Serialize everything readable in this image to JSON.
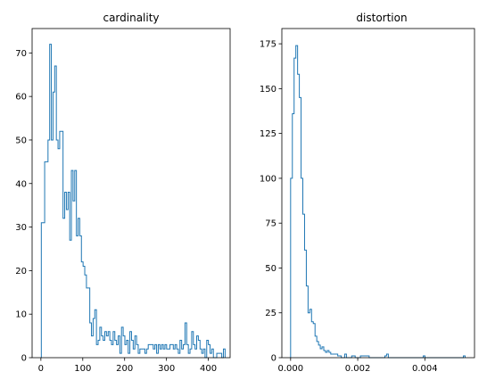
{
  "colors": {
    "series": "#1f77b4",
    "axes": "#000000",
    "background": "#ffffff"
  },
  "chart_data": [
    {
      "type": "histogram",
      "title": "cardinality",
      "xlabel": "",
      "ylabel": "",
      "xlim": [
        -21,
        452
      ],
      "ylim": [
        0,
        75.6
      ],
      "x_ticks": [
        0,
        100,
        200,
        300,
        400
      ],
      "x_tick_labels": [
        "0",
        "100",
        "200",
        "300",
        "400"
      ],
      "y_ticks": [
        0,
        10,
        20,
        30,
        40,
        50,
        60,
        70
      ],
      "y_tick_labels": [
        "0",
        "10",
        "20",
        "30",
        "40",
        "50",
        "60",
        "70"
      ],
      "bin_range": [
        1,
        440
      ],
      "counts": [
        31,
        31,
        45,
        45,
        50,
        72,
        50,
        61,
        67,
        50,
        48,
        52,
        52,
        32,
        38,
        34,
        38,
        27,
        43,
        36,
        43,
        28,
        32,
        28,
        22,
        21,
        19,
        16,
        16,
        8,
        5,
        9,
        11,
        3,
        4,
        7,
        5,
        4,
        6,
        5,
        6,
        4,
        3,
        6,
        4,
        3,
        5,
        1,
        7,
        5,
        3,
        4,
        1,
        6,
        4,
        2,
        5,
        3,
        1,
        2,
        2,
        2,
        1,
        2,
        3,
        3,
        3,
        2,
        3,
        1,
        3,
        2,
        3,
        2,
        3,
        2,
        2,
        3,
        3,
        2,
        3,
        2,
        1,
        4,
        2,
        3,
        8,
        3,
        1,
        2,
        6,
        3,
        2,
        5,
        4,
        2,
        1,
        2,
        0,
        4,
        3,
        1,
        2,
        0,
        0,
        1,
        1,
        1,
        0,
        2
      ]
    },
    {
      "type": "histogram",
      "title": "distortion",
      "xlabel": "",
      "ylabel": "",
      "xlim": [
        -0.000261,
        0.00548
      ],
      "ylim": [
        0,
        183.5
      ],
      "x_ticks": [
        0.0,
        0.002,
        0.004
      ],
      "x_tick_labels": [
        "0.000",
        "0.002",
        "0.004"
      ],
      "y_ticks": [
        0,
        25,
        50,
        75,
        100,
        125,
        150,
        175
      ],
      "y_tick_labels": [
        "0",
        "25",
        "50",
        "75",
        "100",
        "125",
        "150",
        "175"
      ],
      "bin_range": [
        0.0,
        0.0052
      ],
      "counts": [
        100,
        136,
        167,
        174,
        158,
        145,
        100,
        80,
        60,
        40,
        25,
        27,
        20,
        19,
        12,
        9,
        7,
        5,
        6,
        4,
        3,
        4,
        3,
        2,
        2,
        2,
        2,
        1,
        1,
        0,
        0,
        2,
        0,
        0,
        0,
        1,
        1,
        0,
        0,
        0,
        1,
        1,
        1,
        1,
        1,
        0,
        0,
        0,
        0,
        0,
        0,
        0,
        0,
        0,
        1,
        2,
        0,
        0,
        0,
        0,
        0,
        0,
        0,
        0,
        0,
        0,
        0,
        0,
        0,
        0,
        0,
        0,
        0,
        0,
        0,
        0,
        1,
        0,
        0,
        0,
        0,
        0,
        0,
        0,
        0,
        0,
        0,
        0,
        0,
        0,
        0,
        0,
        0,
        0,
        0,
        0,
        0,
        0,
        0,
        1
      ]
    }
  ]
}
